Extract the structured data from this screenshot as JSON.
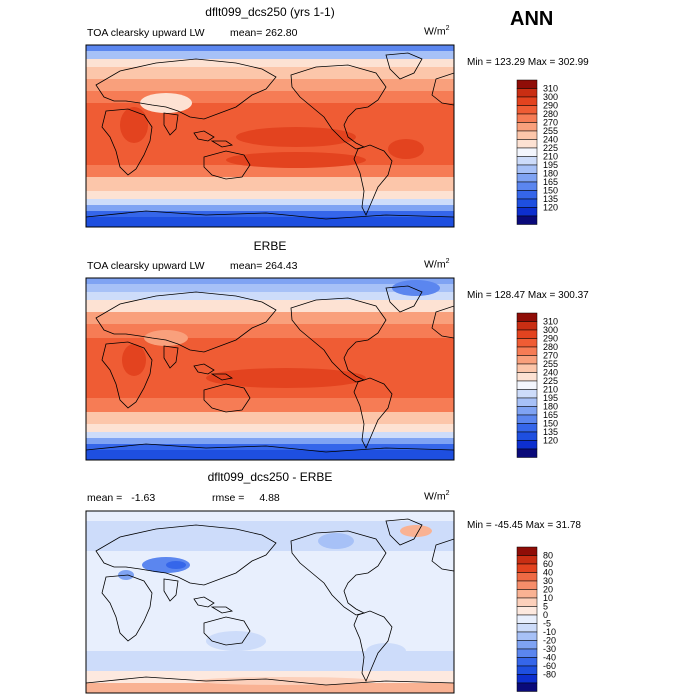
{
  "season": "ANN",
  "colors": {
    "abs_scale": [
      "#0a0a7a",
      "#0d2fcf",
      "#1e4fe0",
      "#3566ea",
      "#5b86ef",
      "#7fa3f3",
      "#a7c1f7",
      "#cddcfa",
      "#f3f6fd",
      "#fde2d3",
      "#fcc6aa",
      "#f9a07c",
      "#f67c55",
      "#ef5c34",
      "#e3431f",
      "#c92e13",
      "#8f0d07"
    ],
    "diff_scale": [
      "#0a0a7a",
      "#0d2fcf",
      "#1e4fe0",
      "#3566ea",
      "#5b86ef",
      "#7fa3f3",
      "#a7c1f7",
      "#cddcfa",
      "#e8effd",
      "#fde9df",
      "#fcd0bb",
      "#f9b293",
      "#f68d6a",
      "#ef6a44",
      "#e3431f",
      "#c92e13",
      "#8f0d07"
    ]
  },
  "chart_data": [
    {
      "type": "heatmap",
      "title": "dflt099_dcs250 (yrs 1-1)",
      "variable": "TOA clearsky upward LW",
      "mean_label": "mean=",
      "mean_value": "262.80",
      "units_label": "W/m",
      "units_sup": "2",
      "min_max": "Min = 123.29 Max = 302.99",
      "colorbar_levels": [
        "310",
        "300",
        "290",
        "280",
        "270",
        "255",
        "240",
        "225",
        "210",
        "195",
        "180",
        "165",
        "150",
        "135",
        "120"
      ]
    },
    {
      "type": "heatmap",
      "title": "ERBE",
      "variable": "TOA clearsky upward LW",
      "mean_label": "mean=",
      "mean_value": "264.43",
      "units_label": "W/m",
      "units_sup": "2",
      "min_max": "Min = 128.47 Max = 300.37",
      "colorbar_levels": [
        "310",
        "300",
        "290",
        "280",
        "270",
        "255",
        "240",
        "225",
        "210",
        "195",
        "180",
        "165",
        "150",
        "135",
        "120"
      ]
    },
    {
      "type": "heatmap",
      "title": "dflt099_dcs250 - ERBE",
      "mean_label": "mean =",
      "mean_value": "-1.63",
      "rmse_label": "rmse =",
      "rmse_value": "4.88",
      "units_label": "W/m",
      "units_sup": "2",
      "min_max": "Min = -45.45 Max =  31.78",
      "colorbar_levels": [
        "80",
        "60",
        "40",
        "30",
        "20",
        "10",
        "5",
        "0",
        "-5",
        "-10",
        "-20",
        "-30",
        "-40",
        "-60",
        "-80"
      ]
    }
  ]
}
